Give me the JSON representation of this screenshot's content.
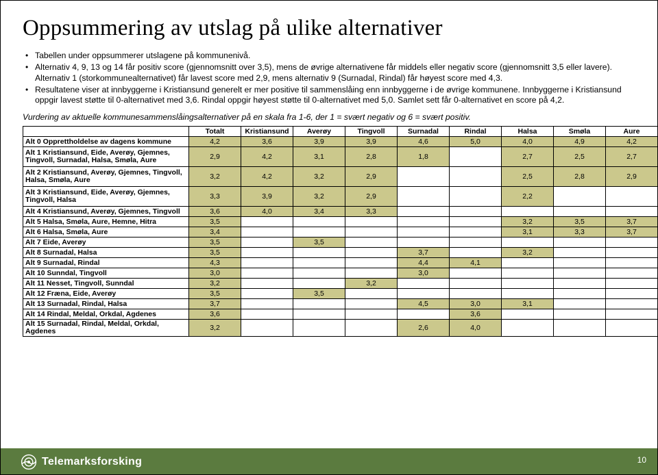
{
  "title": "Oppsummering av utslag på ulike alternativer",
  "bullets": [
    "Tabellen under oppsummerer utslagene på kommunenivå.",
    "Alternativ 4, 9, 13 og 14 får positiv score (gjennomsnitt over 3,5), mens de øvrige alternativene får middels eller negativ score (gjennomsnitt 3,5 eller lavere). Alternativ 1 (storkommunealternativet) får lavest score med 2,9, mens alternativ 9 (Surnadal, Rindal) får høyest score med 4,3.",
    "Resultatene viser at innbyggerne i Kristiansund generelt er mer positive til sammenslåing enn innbyggerne i de øvrige kommunene. Innbyggerne i Kristiansund oppgir lavest støtte til 0-alternativet med 3,6. Rindal oppgir høyest støtte til 0-alternativet med 5,0. Samlet sett får 0-alternativet en score på 4,2."
  ],
  "subnote": "Vurdering av aktuelle kommunesammenslåingsalternativer på en skala fra 1-6, der 1 = svært negativ og 6 = svært positiv.",
  "table": {
    "columns": [
      "",
      "Totalt",
      "Kristiansund",
      "Averøy",
      "Tingvoll",
      "Surnadal",
      "Rindal",
      "Halsa",
      "Smøla",
      "Aure"
    ],
    "highlight_color": "#cbc88c",
    "rows": [
      {
        "label": "Alt 0 Opprettholdelse av dagens kommune",
        "cells": [
          "4,2",
          "3,6",
          "3,9",
          "3,9",
          "4,6",
          "5,0",
          "4,0",
          "4,9",
          "4,2"
        ],
        "hl": [
          0,
          1,
          2,
          3,
          4,
          5,
          6,
          7,
          8
        ]
      },
      {
        "label": "Alt 1 Kristiansund, Eide, Averøy, Gjemnes, Tingvoll, Surnadal, Halsa, Smøla, Aure",
        "cells": [
          "2,9",
          "4,2",
          "3,1",
          "2,8",
          "1,8",
          "",
          "2,7",
          "2,5",
          "2,7"
        ],
        "hl": [
          0,
          1,
          2,
          3,
          4,
          6,
          7,
          8
        ],
        "tall": true
      },
      {
        "label": "Alt 2 Kristiansund, Averøy, Gjemnes, Tingvoll, Halsa, Smøla, Aure",
        "cells": [
          "3,2",
          "4,2",
          "3,2",
          "2,9",
          "",
          "",
          "2,5",
          "2,8",
          "2,9"
        ],
        "hl": [
          0,
          1,
          2,
          3,
          6,
          7,
          8
        ],
        "tall": true
      },
      {
        "label": "Alt 3 Kristiansund, Eide, Averøy, Gjemnes, Tingvoll, Halsa",
        "cells": [
          "3,3",
          "3,9",
          "3,2",
          "2,9",
          "",
          "",
          "2,2",
          "",
          ""
        ],
        "hl": [
          0,
          1,
          2,
          3,
          6
        ],
        "tall": true
      },
      {
        "label": "Alt 4 Kristiansund, Averøy, Gjemnes, Tingvoll",
        "cells": [
          "3,6",
          "4,0",
          "3,4",
          "3,3",
          "",
          "",
          "",
          "",
          ""
        ],
        "hl": [
          0,
          1,
          2,
          3
        ]
      },
      {
        "label": "Alt 5 Halsa, Smøla, Aure, Hemne, Hitra",
        "cells": [
          "3,5",
          "",
          "",
          "",
          "",
          "",
          "3,2",
          "3,5",
          "3,7"
        ],
        "hl": [
          0,
          6,
          7,
          8
        ]
      },
      {
        "label": "Alt 6 Halsa, Smøla, Aure",
        "cells": [
          "3,4",
          "",
          "",
          "",
          "",
          "",
          "3,1",
          "3,3",
          "3,7"
        ],
        "hl": [
          0,
          6,
          7,
          8
        ]
      },
      {
        "label": "Alt 7 Eide, Averøy",
        "cells": [
          "3,5",
          "",
          "3,5",
          "",
          "",
          "",
          "",
          "",
          ""
        ],
        "hl": [
          0,
          2
        ]
      },
      {
        "label": "Alt 8 Surnadal, Halsa",
        "cells": [
          "3,5",
          "",
          "",
          "",
          "3,7",
          "",
          "3,2",
          "",
          ""
        ],
        "hl": [
          0,
          4,
          6
        ]
      },
      {
        "label": "Alt 9 Surnadal, Rindal",
        "cells": [
          "4,3",
          "",
          "",
          "",
          "4,4",
          "4,1",
          "",
          "",
          ""
        ],
        "hl": [
          0,
          4,
          5
        ]
      },
      {
        "label": "Alt 10 Sunndal, Tingvoll",
        "cells": [
          "3,0",
          "",
          "",
          "",
          "3,0",
          "",
          "",
          "",
          ""
        ],
        "hl": [
          0,
          4
        ]
      },
      {
        "label": "Alt 11 Nesset, Tingvoll, Sunndal",
        "cells": [
          "3,2",
          "",
          "",
          "3,2",
          "",
          "",
          "",
          "",
          ""
        ],
        "hl": [
          0,
          3
        ]
      },
      {
        "label": "Alt 12 Fræna, Eide, Averøy",
        "cells": [
          "3,5",
          "",
          "3,5",
          "",
          "",
          "",
          "",
          "",
          ""
        ],
        "hl": [
          0,
          2
        ]
      },
      {
        "label": "Alt 13 Surnadal, Rindal, Halsa",
        "cells": [
          "3,7",
          "",
          "",
          "",
          "4,5",
          "3,0",
          "3,1",
          "",
          ""
        ],
        "hl": [
          0,
          4,
          5,
          6
        ]
      },
      {
        "label": "Alt 14 Rindal, Meldal, Orkdal, Agdenes",
        "cells": [
          "3,6",
          "",
          "",
          "",
          "",
          "3,6",
          "",
          "",
          ""
        ],
        "hl": [
          0,
          5
        ]
      },
      {
        "label": "Alt 15 Surnadal, Rindal, Meldal, Orkdal, Agdenes",
        "cells": [
          "3,2",
          "",
          "",
          "",
          "2,6",
          "4,0",
          "",
          "",
          ""
        ],
        "hl": [
          0,
          4,
          5
        ]
      }
    ]
  },
  "footer": {
    "brand": "Telemarksforsking",
    "page": "10"
  }
}
